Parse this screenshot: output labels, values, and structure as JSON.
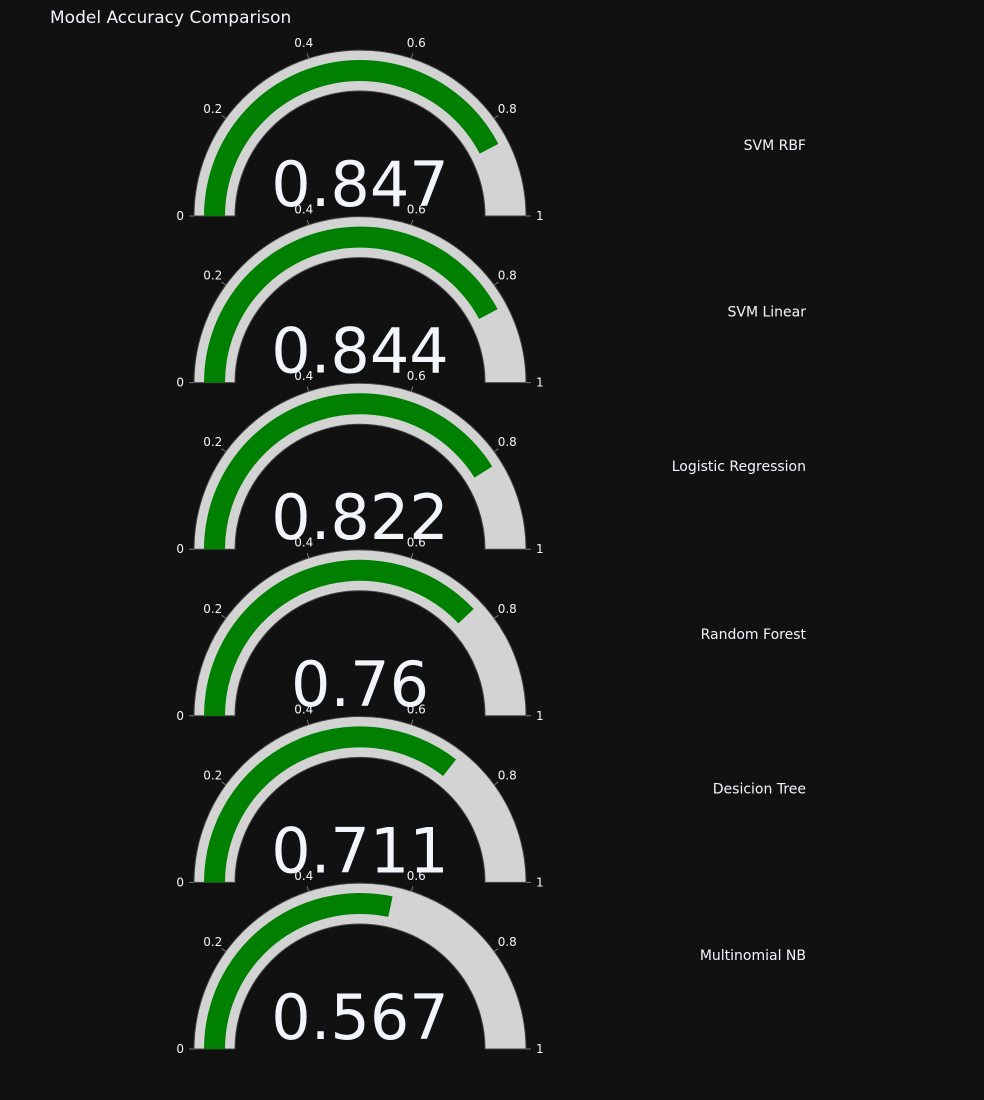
{
  "title": "Model Accuracy Comparison",
  "colors": {
    "background": "#111111",
    "track": "#d3d3d3",
    "bar": "#008000",
    "text": "#f2f5fa",
    "track_border": "#444444"
  },
  "chart_data": {
    "type": "gauge",
    "title": "Model Accuracy Comparison",
    "range": [
      0,
      1
    ],
    "tick_labels": [
      "0",
      "0.2",
      "0.4",
      "0.6",
      "0.8",
      "1"
    ],
    "series": [
      {
        "name": "SVM RBF",
        "value": 0.847,
        "value_label": "0.847"
      },
      {
        "name": "SVM Linear",
        "value": 0.844,
        "value_label": "0.844"
      },
      {
        "name": "Logistic Regression",
        "value": 0.822,
        "value_label": "0.822"
      },
      {
        "name": "Random Forest",
        "value": 0.76,
        "value_label": "0.76"
      },
      {
        "name": "Desicion Tree",
        "value": 0.711,
        "value_label": "0.711"
      },
      {
        "name": "Multinomial NB",
        "value": 0.567,
        "value_label": "0.567"
      }
    ]
  }
}
